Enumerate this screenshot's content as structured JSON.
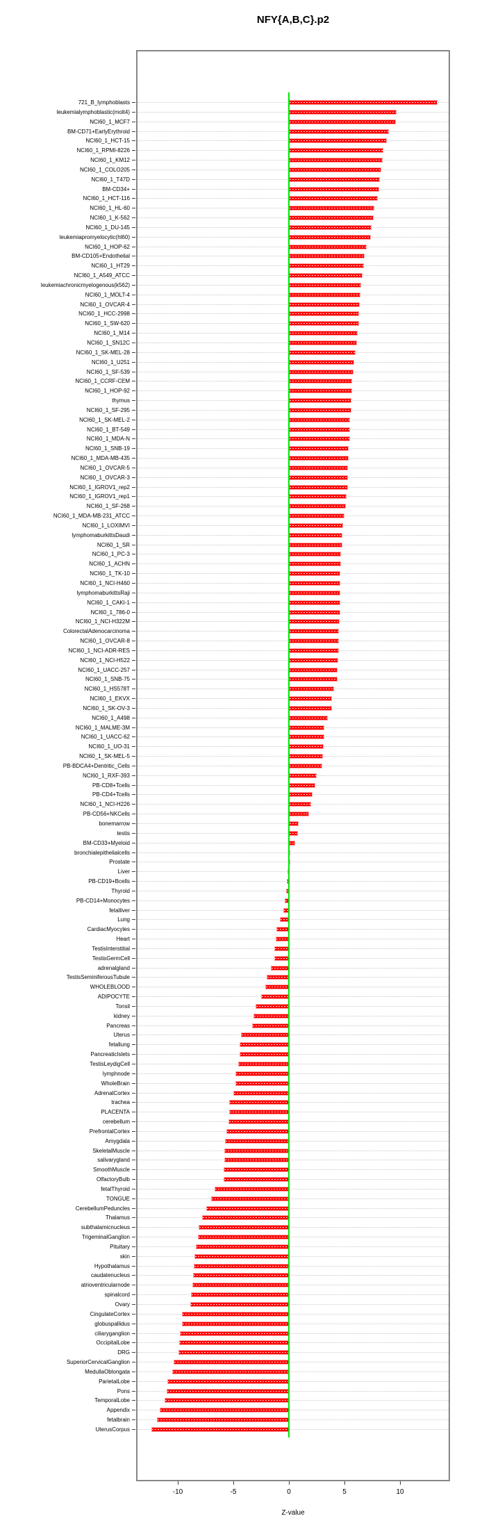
{
  "chart_data": {
    "type": "bar",
    "orientation": "horizontal",
    "title": "NFY{A,B,C}.p2",
    "xlabel": "Z-value",
    "ylabel": "",
    "xlim": [
      -13.75,
      14.5
    ],
    "x_ticks": [
      -10,
      -5,
      0,
      5,
      10
    ],
    "x_tick_labels": [
      "-10",
      "-5",
      "0",
      "5",
      "10"
    ],
    "grid": "dotted-horizontal-per-category",
    "legend": null,
    "bar_color": "#fa0202",
    "bar_edge_color": "#ff9e9e",
    "zero_line_color": "#00e800",
    "gridline_color": "#c9c9c9",
    "box_border_color": "#868686",
    "categories": [
      "721_B_lymphoblasts",
      "leukemialymphoblastic(molt4)",
      "NCI60_1_MCF7",
      "BM-CD71+EarlyErythroid",
      "NCI60_1_HCT-15",
      "NCI60_1_RPMI-8226",
      "NCI60_1_KM12",
      "NCI60_1_COLO205",
      "NCI60_1_T47D",
      "BM-CD34+",
      "NCI60_1_HCT-116",
      "NCI60_1_HL-60",
      "NCI60_1_K-562",
      "NCI60_1_DU-145",
      "leukemiapromyelocytic(hl60)",
      "NCI60_1_HOP-62",
      "BM-CD105+Endothelial",
      "NCI60_1_HT29",
      "NCI60_1_A549_ATCC",
      "leukemiachronicmyelogenous(k562)",
      "NCI60_1_MOLT-4",
      "NCI60_1_OVCAR-4",
      "NCI60_1_HCC-2998",
      "NCI60_1_SW-620",
      "NCI60_1_M14",
      "NCI60_1_SN12C",
      "NCI60_1_SK-MEL-28",
      "NCI60_1_U251",
      "NCI60_1_SF-539",
      "NCI60_1_CCRF-CEM",
      "NCI60_1_HOP-92",
      "thymus",
      "NCI60_1_SF-295",
      "NCI60_1_SK-MEL-2",
      "NCI60_1_BT-549",
      "NCI60_1_MDA-N",
      "NCI60_1_SNB-19",
      "NCI60_1_MDA-MB-435",
      "NCI60_1_OVCAR-5",
      "NCI60_1_OVCAR-3",
      "NCI60_1_IGROV1_rep2",
      "NCI60_1_IGROV1_rep1",
      "NCI60_1_SF-268",
      "NCI60_1_MDA-MB-231_ATCC",
      "NCI60_1_LOXIMVI",
      "lymphomaburkittsDaudi",
      "NCI60_1_SR",
      "NCI60_1_PC-3",
      "NCI60_1_ACHN",
      "NCI60_1_TK-10",
      "NCI60_1_NCI-H460",
      "lymphomaburkittsRaji",
      "NCI60_1_CAKI-1",
      "NCI60_1_786-0",
      "NCI60_1_NCI-H322M",
      "ColorectalAdenocarcinoma",
      "NCI60_1_OVCAR-8",
      "NCI60_1_NCI-ADR-RES",
      "NCI60_1_NCI-H522",
      "NCI60_1_UACC-257",
      "NCI60_1_SNB-75",
      "NCI60_1_HS578T",
      "NCI60_1_EKVX",
      "NCI60_1_SK-OV-3",
      "NCI60_1_A498",
      "NCI60_1_MALME-3M",
      "NCI60_1_UACC-62",
      "NCI60_1_UO-31",
      "NCI60_1_SK-MEL-5",
      "PB-BDCA4+Dentritic_Cells",
      "NCI60_1_RXF-393",
      "PB-CD8+Tcells",
      "PB-CD4+Tcells",
      "NCI60_1_NCI-H226",
      "PB-CD56+NKCells",
      "bonemarrow",
      "testis",
      "BM-CD33+Myeloid",
      "bronchialepithelialcells",
      "Prostate",
      "Liver",
      "PB-CD19+Bcells",
      "Thyroid",
      "PB-CD14+Monocytes",
      "fetalliver",
      "Lung",
      "CardiacMyocytes",
      "Heart",
      "TestisInterstitial",
      "TestisGermCell",
      "adrenalgland",
      "TestisSeminiferousTubule",
      "WHOLEBLOOD",
      "ADIPOCYTE",
      "Tonsil",
      "kidney",
      "Pancreas",
      "Uterus",
      "fetallung",
      "PancreaticIslets",
      "TestisLeydigCell",
      "lymphnode",
      "WholeBrain",
      "AdrenalCortex",
      "trachea",
      "PLACENTA",
      "cerebellum",
      "PrefrontalCortex",
      "Amygdala",
      "SkeletalMuscle",
      "salivarygland",
      "SmoothMuscle",
      "OlfactoryBulb",
      "fetalThyroid",
      "TONGUE",
      "CerebellumPeduncles",
      "Thalamus",
      "subthalamicnucleus",
      "TrigeminalGanglion",
      "Pituitary",
      "skin",
      "Hypothalamus",
      "caudatenucleus",
      "atrioventricularnode",
      "spinalcord",
      "Ovary",
      "CingulateCortex",
      "globuspallidus",
      "ciliaryganglion",
      "OccipitalLobe",
      "DRG",
      "SuperiorCervicalGanglion",
      "MedullaOblongata",
      "ParietalLobe",
      "Pons",
      "TemporalLobe",
      "Appendix",
      "fetalbrain",
      "UterusCorpus"
    ],
    "values": [
      13.4,
      9.7,
      9.6,
      9.0,
      8.8,
      8.5,
      8.45,
      8.3,
      8.2,
      8.1,
      8.0,
      7.7,
      7.6,
      7.45,
      7.4,
      7.0,
      6.8,
      6.75,
      6.6,
      6.5,
      6.45,
      6.4,
      6.3,
      6.3,
      6.2,
      6.1,
      6.0,
      5.9,
      5.8,
      5.7,
      5.7,
      5.6,
      5.6,
      5.5,
      5.5,
      5.5,
      5.4,
      5.35,
      5.3,
      5.3,
      5.3,
      5.2,
      5.1,
      5.0,
      4.85,
      4.8,
      4.8,
      4.7,
      4.7,
      4.65,
      4.6,
      4.6,
      4.6,
      4.6,
      4.55,
      4.5,
      4.5,
      4.5,
      4.45,
      4.4,
      4.4,
      4.05,
      3.9,
      3.85,
      3.5,
      3.2,
      3.2,
      3.15,
      3.05,
      3.0,
      2.5,
      2.4,
      2.1,
      2.0,
      1.8,
      0.85,
      0.8,
      0.55,
      0.15,
      0.05,
      -0.1,
      -0.2,
      -0.25,
      -0.35,
      -0.5,
      -0.8,
      -1.1,
      -1.2,
      -1.3,
      -1.3,
      -1.6,
      -2.0,
      -2.1,
      -2.5,
      -3.0,
      -3.2,
      -3.3,
      -4.3,
      -4.45,
      -4.45,
      -4.55,
      -4.8,
      -4.8,
      -5.0,
      -5.35,
      -5.4,
      -5.45,
      -5.6,
      -5.75,
      -5.8,
      -5.8,
      -5.9,
      -5.9,
      -6.7,
      -7.0,
      -7.45,
      -7.8,
      -8.1,
      -8.2,
      -8.35,
      -8.5,
      -8.55,
      -8.6,
      -8.7,
      -8.8,
      -8.9,
      -9.6,
      -9.6,
      -9.8,
      -9.9,
      -9.95,
      -10.35,
      -10.5,
      -10.95,
      -11.0,
      -11.2,
      -11.65,
      -11.9,
      -12.4
    ]
  }
}
